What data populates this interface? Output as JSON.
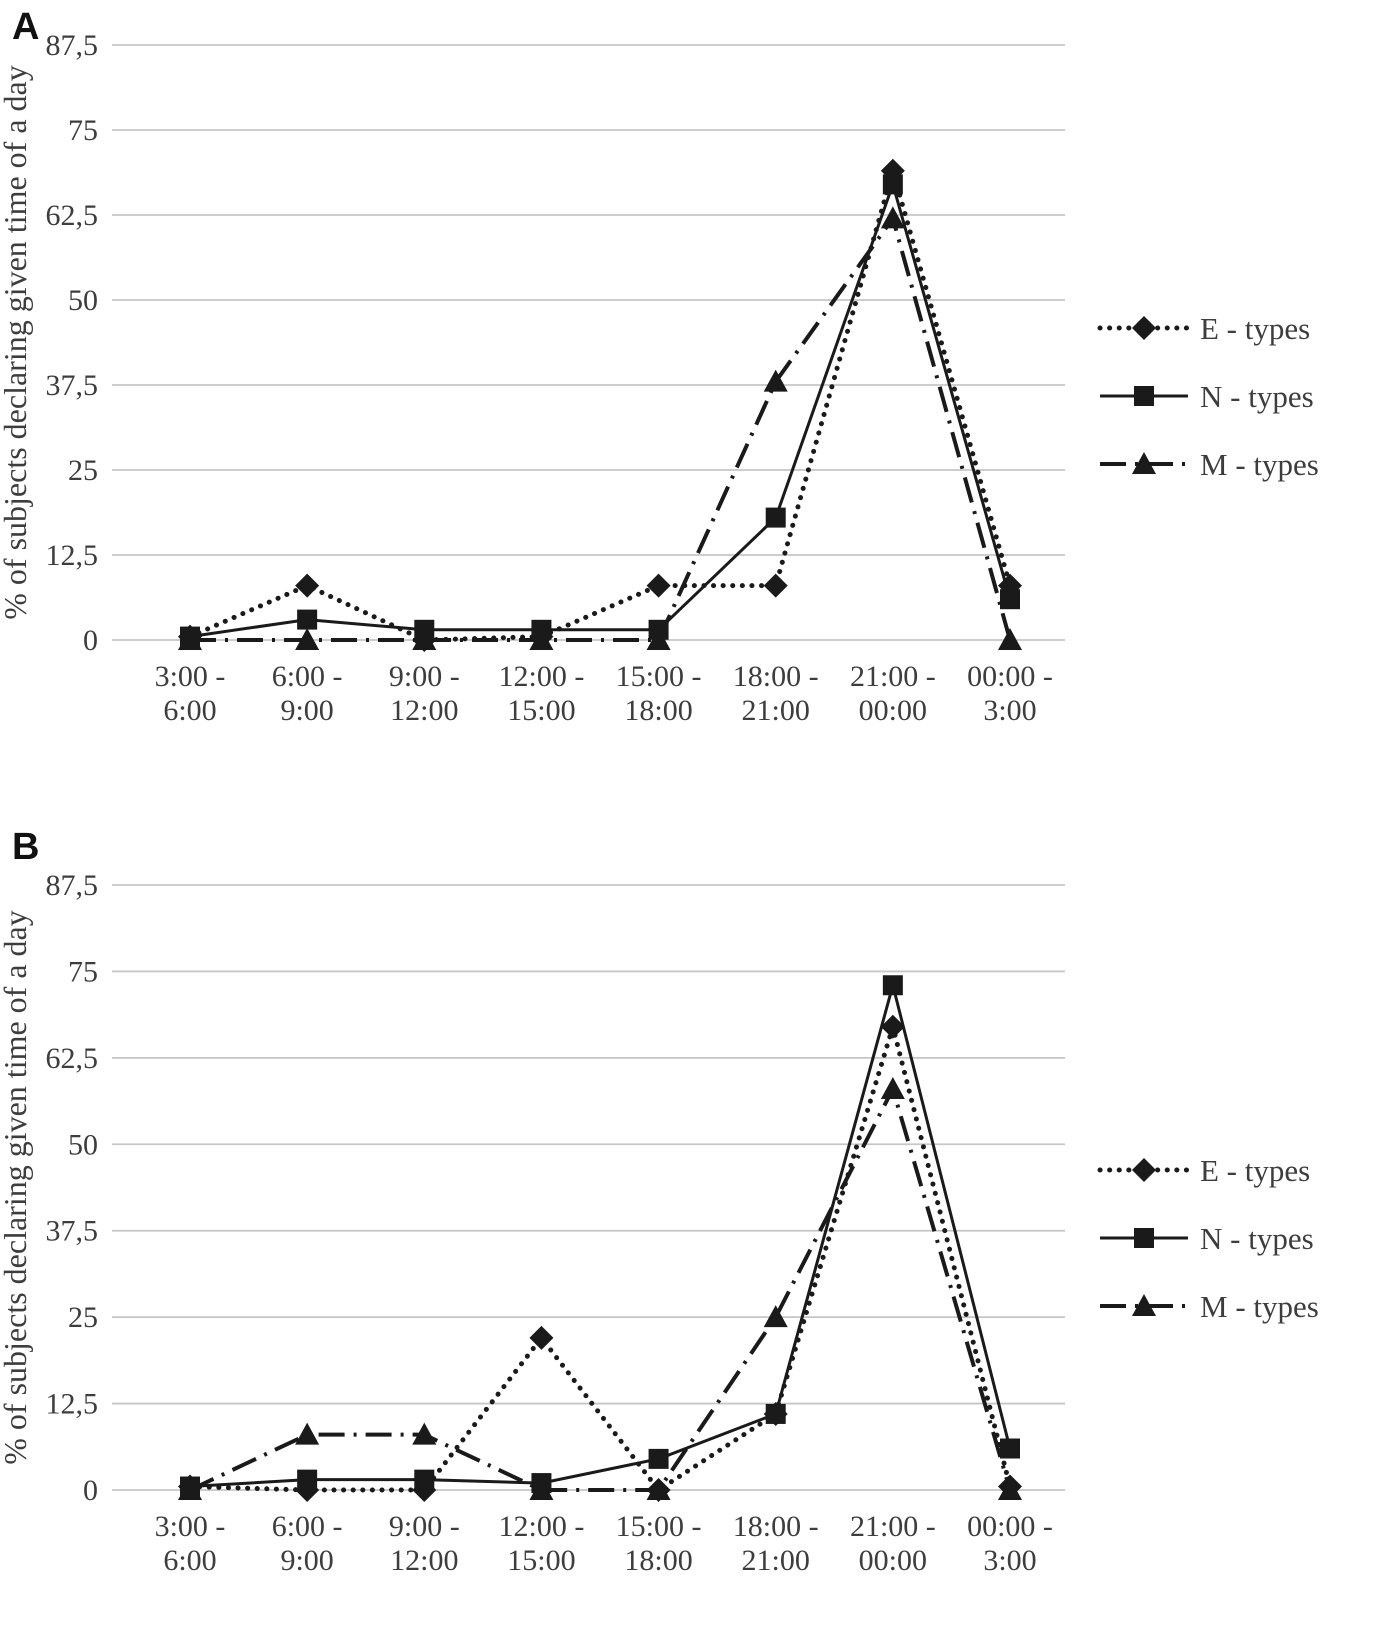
{
  "panels": [
    {
      "label": "A"
    },
    {
      "label": "B"
    }
  ],
  "colors": {
    "line": "#1a1a1a",
    "grid": "#c6c6c6",
    "text": "#3d3d3d",
    "background": "#ffffff"
  },
  "chart_data": [
    {
      "type": "line",
      "panel": "A",
      "title": "",
      "xlabel": "",
      "ylabel": "% of subjects declaring given time of a day",
      "ylim": [
        0,
        87.5
      ],
      "grid": true,
      "legend_position": "right",
      "yticks": [
        "87,5",
        "75",
        "62,5",
        "50",
        "37,5",
        "25",
        "12,5",
        "0"
      ],
      "ytick_values": [
        87.5,
        75,
        62.5,
        50,
        37.5,
        25,
        12.5,
        0
      ],
      "categories": [
        [
          "3:00 -",
          "6:00"
        ],
        [
          "6:00 -",
          "9:00"
        ],
        [
          "9:00 -",
          "12:00"
        ],
        [
          "12:00 -",
          "15:00"
        ],
        [
          "15:00 -",
          "18:00"
        ],
        [
          "18:00 -",
          "21:00"
        ],
        [
          "21:00 -",
          "00:00"
        ],
        [
          "00:00 -",
          "3:00"
        ]
      ],
      "series": [
        {
          "name": "E - types",
          "key": "e-types",
          "marker": "diamond",
          "line": "dotted",
          "values": [
            0.5,
            8,
            0,
            0.5,
            8,
            8,
            69,
            8
          ]
        },
        {
          "name": "N - types",
          "key": "n-types",
          "marker": "square",
          "line": "solid",
          "values": [
            0.5,
            3,
            1.5,
            1.5,
            1.5,
            18,
            67,
            6
          ]
        },
        {
          "name": "M - types",
          "key": "m-types",
          "marker": "triangle",
          "line": "dashdot",
          "values": [
            0,
            0,
            0,
            0,
            0,
            38,
            62,
            0
          ]
        }
      ]
    },
    {
      "type": "line",
      "panel": "B",
      "title": "",
      "xlabel": "",
      "ylabel": "% of subjects declaring given time of a day",
      "ylim": [
        0,
        87.5
      ],
      "grid": true,
      "legend_position": "right",
      "yticks": [
        "87,5",
        "75",
        "62,5",
        "50",
        "37,5",
        "25",
        "12,5",
        "0"
      ],
      "ytick_values": [
        87.5,
        75,
        62.5,
        50,
        37.5,
        25,
        12.5,
        0
      ],
      "categories": [
        [
          "3:00 -",
          "6:00"
        ],
        [
          "6:00 -",
          "9:00"
        ],
        [
          "9:00 -",
          "12:00"
        ],
        [
          "12:00 -",
          "15:00"
        ],
        [
          "15:00 -",
          "18:00"
        ],
        [
          "18:00 -",
          "21:00"
        ],
        [
          "21:00 -",
          "00:00"
        ],
        [
          "00:00 -",
          "3:00"
        ]
      ],
      "series": [
        {
          "name": "E - types",
          "key": "e-types",
          "marker": "diamond",
          "line": "dotted",
          "values": [
            0.5,
            0,
            0,
            22,
            0,
            11,
            67,
            0.5
          ]
        },
        {
          "name": "N - types",
          "key": "n-types",
          "marker": "square",
          "line": "solid",
          "values": [
            0.5,
            1.5,
            1.5,
            1,
            4.5,
            11,
            73,
            6
          ]
        },
        {
          "name": "M - types",
          "key": "m-types",
          "marker": "triangle",
          "line": "dashdot",
          "values": [
            0,
            8,
            8,
            0,
            0,
            25,
            58,
            0
          ]
        }
      ]
    }
  ]
}
